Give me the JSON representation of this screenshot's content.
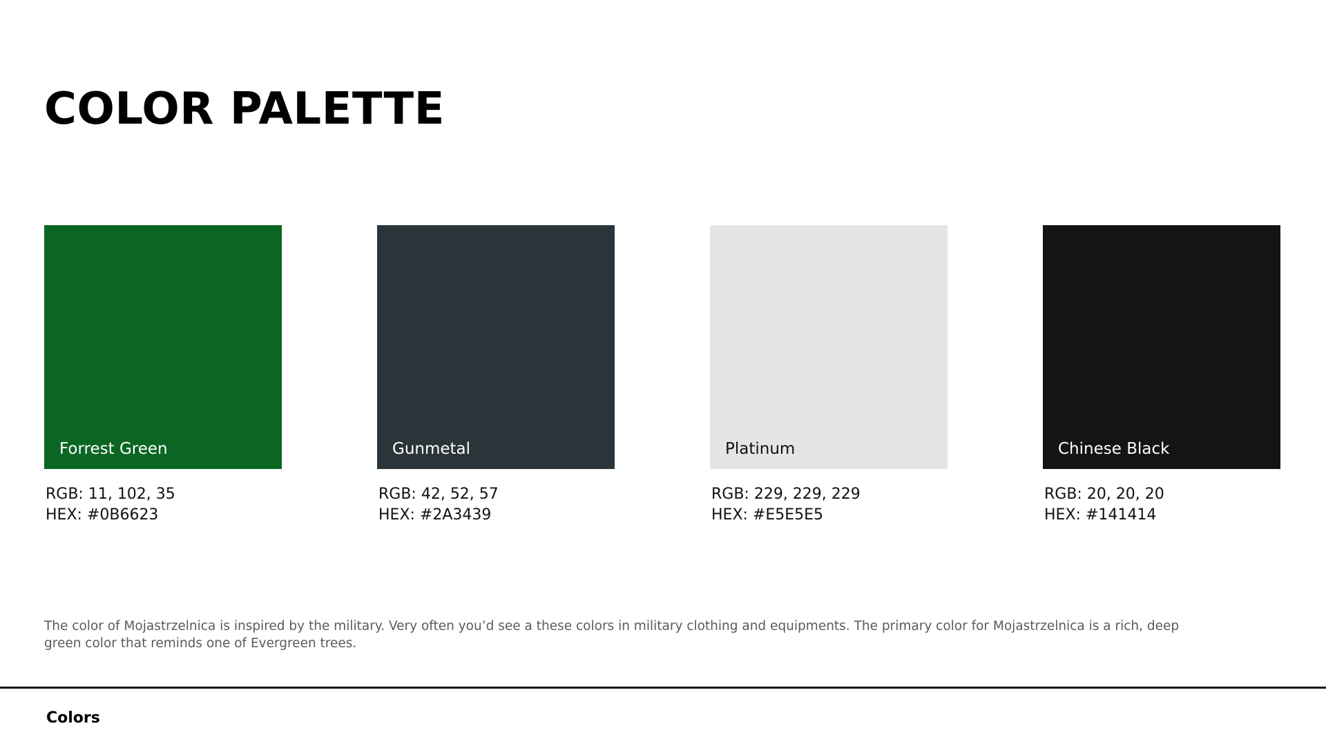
{
  "page": {
    "title": "COLOR PALETTE",
    "description": "The color of Mojastrzelnica is inspired by the military. Very often you’d see a these colors in military clothing and equipments. The primary color for Mojastrzelnica is a rich, deep green color that reminds one of Evergreen trees.",
    "footer_label": "Colors"
  },
  "palette": [
    {
      "name": "Forrest Green",
      "rgb": "RGB: 11, 102, 35",
      "hex": "HEX: #0B6623",
      "swatch_color": "#0B6623",
      "text_color": "#FFFFFF"
    },
    {
      "name": "Gunmetal",
      "rgb": "RGB: 42, 52, 57",
      "hex": "HEX: #2A3439",
      "swatch_color": "#2A3439",
      "text_color": "#FFFFFF"
    },
    {
      "name": "Platinum",
      "rgb": "RGB: 229, 229, 229",
      "hex": "HEX: #E5E5E5",
      "swatch_color": "#E5E5E5",
      "text_color": "#111111"
    },
    {
      "name": "Chinese Black",
      "rgb": "RGB: 20, 20, 20",
      "hex": "HEX: #141414",
      "swatch_color": "#141414",
      "text_color": "#FFFFFF"
    }
  ]
}
